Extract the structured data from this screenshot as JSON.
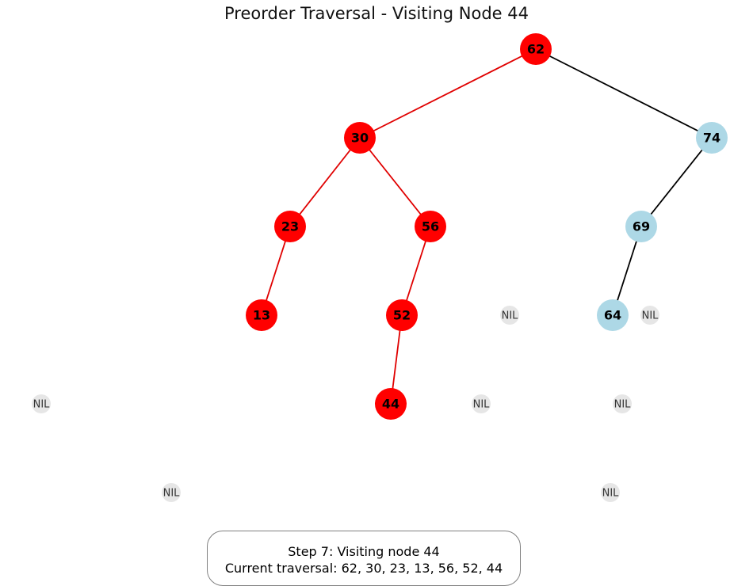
{
  "title": "Preorder Traversal - Visiting Node 44",
  "colors": {
    "visited_node": "#ff0000",
    "visited_edge": "#e00000",
    "unvisited_node": "#add8e6",
    "edge": "#000000",
    "nil_fill": "#e6e6e6"
  },
  "tree": {
    "nodes": [
      {
        "id": "62",
        "label": "62",
        "state": "visited"
      },
      {
        "id": "30",
        "label": "30",
        "state": "visited"
      },
      {
        "id": "74",
        "label": "74",
        "state": "unvisited"
      },
      {
        "id": "23",
        "label": "23",
        "state": "visited"
      },
      {
        "id": "56",
        "label": "56",
        "state": "visited"
      },
      {
        "id": "69",
        "label": "69",
        "state": "unvisited"
      },
      {
        "id": "13",
        "label": "13",
        "state": "visited"
      },
      {
        "id": "52",
        "label": "52",
        "state": "visited"
      },
      {
        "id": "64",
        "label": "64",
        "state": "unvisited"
      },
      {
        "id": "44",
        "label": "44",
        "state": "visited"
      }
    ],
    "edges": [
      {
        "from": "62",
        "to": "30",
        "visited": true
      },
      {
        "from": "62",
        "to": "74",
        "visited": false
      },
      {
        "from": "30",
        "to": "23",
        "visited": true
      },
      {
        "from": "30",
        "to": "56",
        "visited": true
      },
      {
        "from": "74",
        "to": "69",
        "visited": false
      },
      {
        "from": "23",
        "to": "13",
        "visited": true
      },
      {
        "from": "56",
        "to": "52",
        "visited": true
      },
      {
        "from": "69",
        "to": "64",
        "visited": false
      },
      {
        "from": "52",
        "to": "44",
        "visited": true
      }
    ],
    "nil_label": "NIL",
    "nil_count": 7
  },
  "status": {
    "step_line": "Step 7: Visiting node 44",
    "traversal_line": "Current traversal: 62, 30, 23, 13, 56, 52, 44"
  }
}
